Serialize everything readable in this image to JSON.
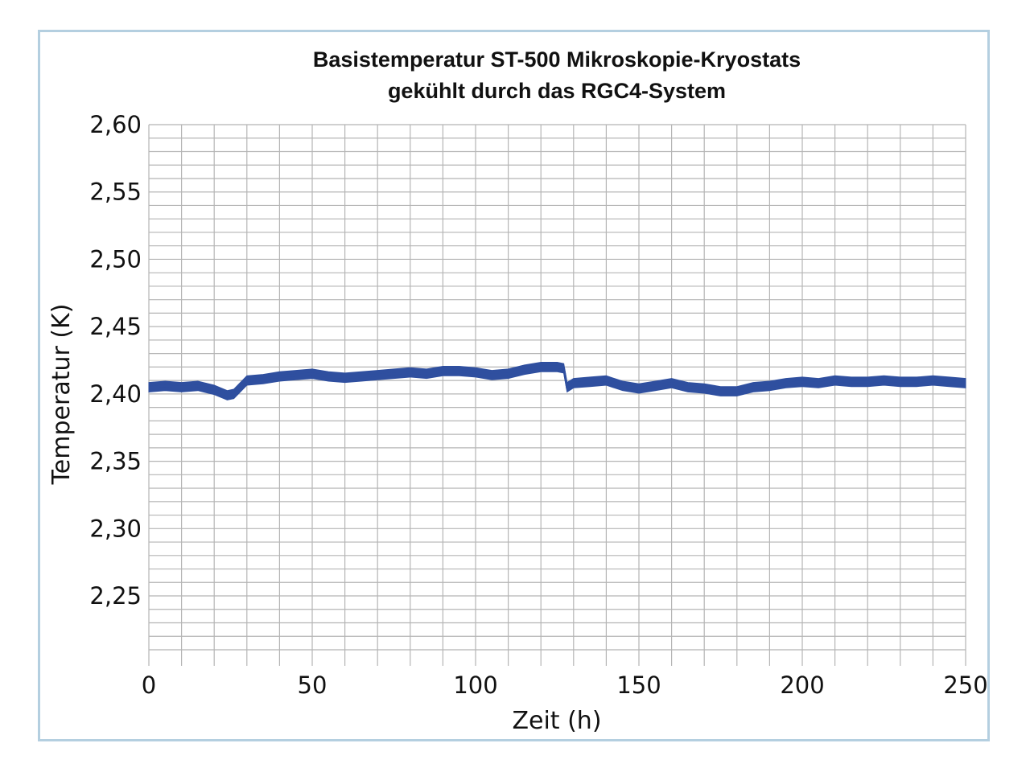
{
  "chart_data": {
    "type": "line",
    "title": "Basistemperatur ST-500 Mikroskopie-Kryostats",
    "subtitle": "gekühlt durch das RGC4-System",
    "xlabel": "Zeit (h)",
    "ylabel": "Temperatur (K)",
    "xlim": [
      0,
      250
    ],
    "ylim": [
      2.21,
      2.6
    ],
    "xticks": [
      "0",
      "50",
      "100",
      "150",
      "200",
      "250"
    ],
    "yticks": [
      "2,60",
      "2,55",
      "2,50",
      "2,45",
      "2,40",
      "2,35",
      "2,30",
      "2,25"
    ],
    "grid": true,
    "series": [
      {
        "color": "#2f4f9f",
        "x": [
          0,
          5,
          10,
          15,
          20,
          24,
          26,
          30,
          35,
          40,
          45,
          50,
          55,
          60,
          65,
          70,
          75,
          80,
          85,
          90,
          95,
          100,
          105,
          110,
          115,
          120,
          125,
          127,
          128,
          130,
          135,
          140,
          145,
          150,
          155,
          160,
          165,
          170,
          175,
          180,
          185,
          190,
          195,
          200,
          205,
          210,
          215,
          220,
          225,
          230,
          235,
          240,
          245,
          250
        ],
        "y": [
          2.405,
          2.406,
          2.405,
          2.406,
          2.403,
          2.399,
          2.4,
          2.41,
          2.411,
          2.413,
          2.414,
          2.415,
          2.413,
          2.412,
          2.413,
          2.414,
          2.415,
          2.416,
          2.415,
          2.417,
          2.417,
          2.416,
          2.414,
          2.415,
          2.418,
          2.42,
          2.42,
          2.419,
          2.405,
          2.408,
          2.409,
          2.41,
          2.406,
          2.404,
          2.406,
          2.408,
          2.405,
          2.404,
          2.402,
          2.402,
          2.405,
          2.406,
          2.408,
          2.409,
          2.408,
          2.41,
          2.409,
          2.409,
          2.41,
          2.409,
          2.409,
          2.41,
          2.409,
          2.408
        ],
        "band": 0.007
      }
    ]
  }
}
